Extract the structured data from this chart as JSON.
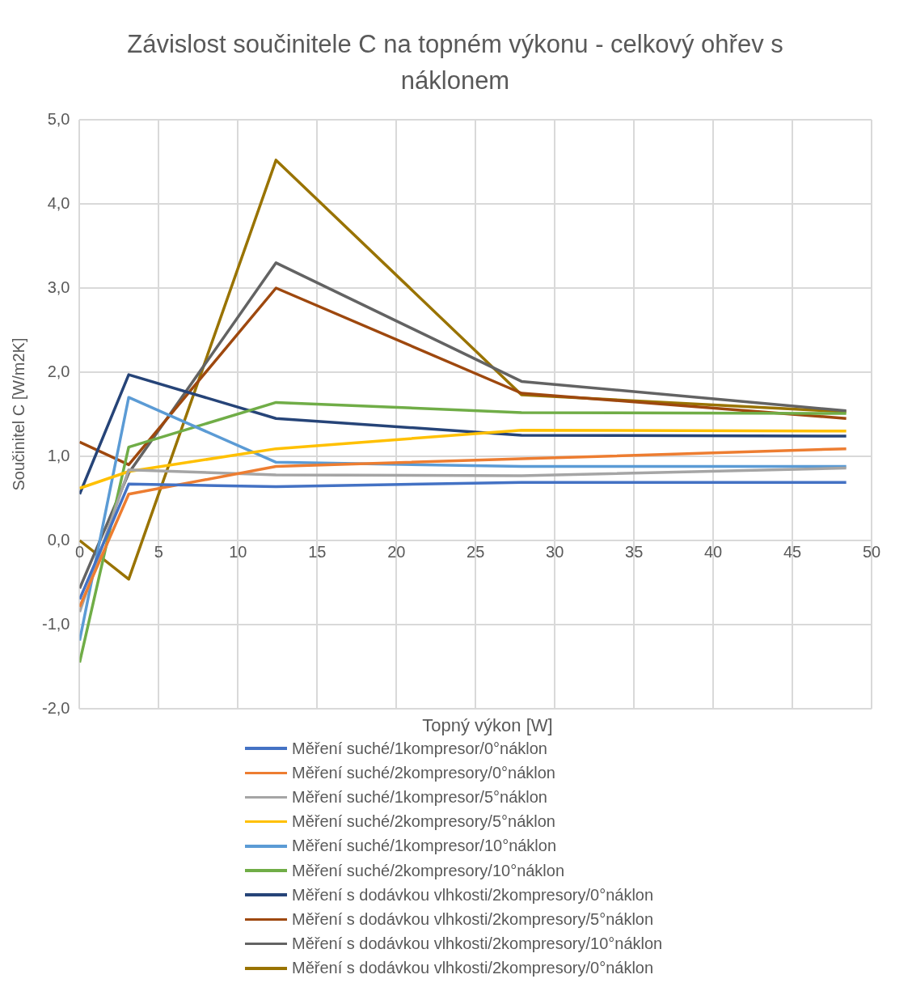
{
  "chart_data": {
    "type": "line",
    "title": "Závislost součinitele C na topném výkonu - celkový ohřev s náklonem",
    "xlabel": "Topný výkon [W]",
    "ylabel": "Součinitel C [W/m2K]",
    "x": [
      0,
      3.1,
      12.4,
      27.9,
      48.4
    ],
    "xlim": [
      0,
      50
    ],
    "xticks": [
      0,
      5,
      10,
      15,
      20,
      25,
      30,
      35,
      40,
      45,
      50
    ],
    "ylim": [
      -2,
      5
    ],
    "yticks": [
      {
        "value": -2,
        "label": "-2,0"
      },
      {
        "value": -1,
        "label": "-1,0"
      },
      {
        "value": 0,
        "label": "0,0"
      },
      {
        "value": 1,
        "label": "1,0"
      },
      {
        "value": 2,
        "label": "2,0"
      },
      {
        "value": 3,
        "label": "3,0"
      },
      {
        "value": 4,
        "label": "4,0"
      },
      {
        "value": 5,
        "label": "5,0"
      }
    ],
    "grid": true,
    "legend": "bottom",
    "marker": "none",
    "line_style": "solid",
    "series": [
      {
        "name": "Měření suché/1kompresor/0°náklon",
        "color": "#4472c4",
        "values": [
          -0.7,
          0.67,
          0.64,
          0.69,
          0.69
        ]
      },
      {
        "name": "Měření suché/2kompresory/0°náklon",
        "color": "#ed7d31",
        "values": [
          -0.79,
          0.55,
          0.88,
          0.97,
          1.09
        ]
      },
      {
        "name": "Měření suché/1kompresor/5°náklon",
        "color": "#a5a5a5",
        "values": [
          -0.85,
          0.84,
          0.78,
          0.77,
          0.86
        ]
      },
      {
        "name": "Měření suché/2kompresory/5°náklon",
        "color": "#ffc000",
        "values": [
          0.62,
          0.82,
          1.09,
          1.31,
          1.3
        ]
      },
      {
        "name": "Měření suché/1kompresor/10°náklon",
        "color": "#5b9bd5",
        "values": [
          -1.19,
          1.7,
          0.93,
          0.88,
          0.88
        ]
      },
      {
        "name": "Měření suché/2kompresory/10°náklon",
        "color": "#70ad47",
        "values": [
          -1.45,
          1.11,
          1.64,
          1.52,
          1.51
        ]
      },
      {
        "name": "Měření s dodávkou vlhkosti/2kompresory/0°náklon",
        "color": "#264478",
        "values": [
          0.55,
          1.97,
          1.45,
          1.25,
          1.24
        ]
      },
      {
        "name": "Měření s dodávkou vlhkosti/2kompresory/5°náklon",
        "color": "#9e480e",
        "values": [
          1.17,
          0.9,
          3.0,
          1.75,
          1.45
        ]
      },
      {
        "name": "Měření s dodávkou vlhkosti/2kompresory/10°náklon",
        "color": "#636363",
        "values": [
          -0.57,
          0.8,
          3.3,
          1.89,
          1.54
        ]
      },
      {
        "name": "Měření s dodávkou vlhkosti/2kompresory/0°náklon",
        "color": "#997300",
        "values": [
          0,
          -0.46,
          4.52,
          1.73,
          1.53
        ]
      }
    ]
  }
}
